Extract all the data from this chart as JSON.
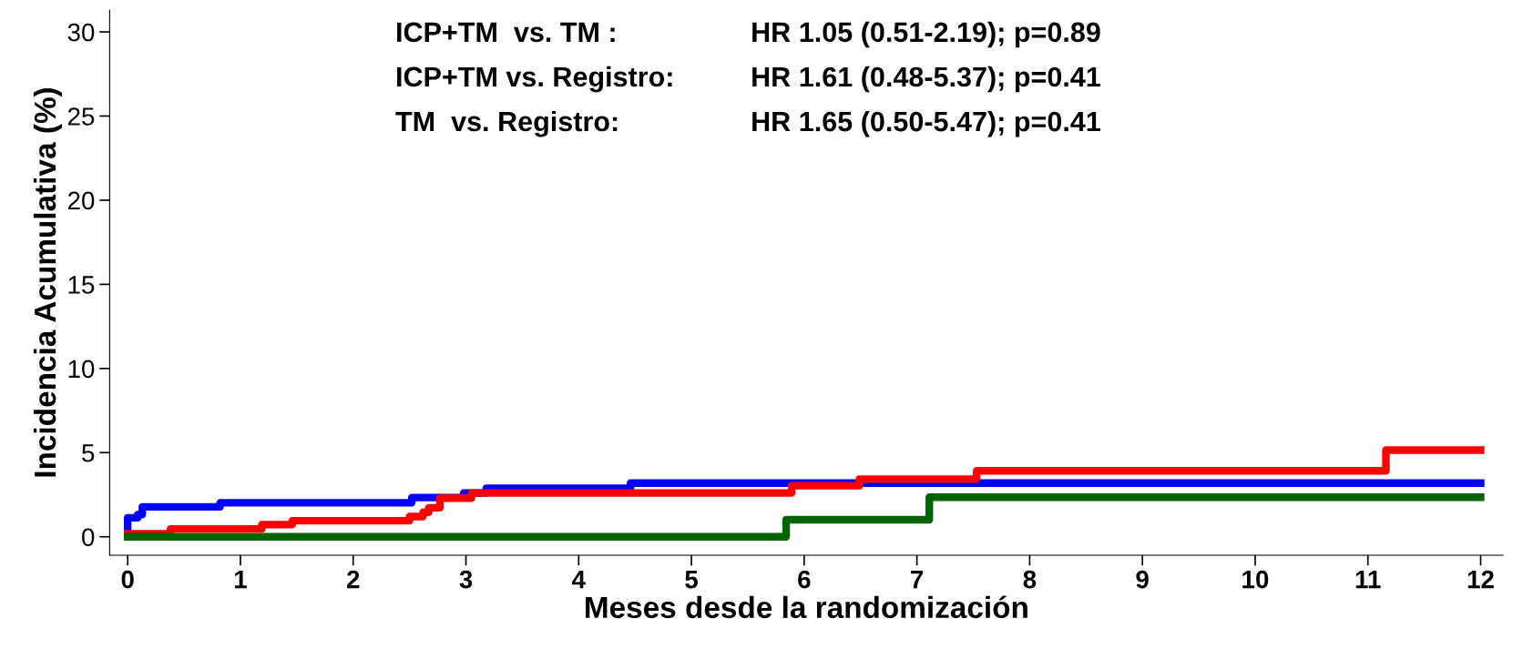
{
  "chart_data": {
    "type": "step",
    "xlabel": "Meses desde la randomización",
    "ylabel": "Incidencia Acumulativa (%)",
    "xlim": [
      -0.16,
      12.2
    ],
    "ylim": [
      -1.1,
      31.3
    ],
    "xticks": [
      0,
      1,
      2,
      3,
      4,
      5,
      6,
      7,
      8,
      9,
      10,
      11,
      12
    ],
    "yticks": [
      0,
      5,
      10,
      15,
      20,
      25,
      30
    ],
    "grid": false,
    "legend": false,
    "annotations": [
      "ICP+TM  vs. TM :",
      "HR 1.05 (0.51-2.19); p=0.89",
      "ICP+TM vs. Registro:",
      "HR 1.61 (0.48-5.37); p=0.41",
      "TM  vs. Registro:",
      "HR 1.65 (0.50-5.47); p=0.41"
    ],
    "series": [
      {
        "color": "#0000ff",
        "x": [
          0,
          0,
          0.09,
          0.13,
          0.82,
          2.52,
          2.98,
          3.18,
          4.46,
          12
        ],
        "values": [
          0,
          1.13,
          1.32,
          1.78,
          2.02,
          2.33,
          2.6,
          2.88,
          3.19,
          3.19
        ]
      },
      {
        "color": "#ff0000",
        "x": [
          0,
          0.38,
          1.19,
          1.46,
          2.5,
          2.62,
          2.67,
          2.77,
          3.05,
          5.89,
          6.49,
          7.53,
          11.16,
          12
        ],
        "values": [
          0.18,
          0.46,
          0.72,
          0.95,
          1.2,
          1.45,
          1.72,
          2.29,
          2.6,
          3.03,
          3.43,
          3.92,
          5.15,
          5.15
        ]
      },
      {
        "color": "#006400",
        "x": [
          0,
          5.84,
          7.11,
          12
        ],
        "values": [
          0,
          1.01,
          2.35,
          2.35
        ]
      }
    ]
  }
}
